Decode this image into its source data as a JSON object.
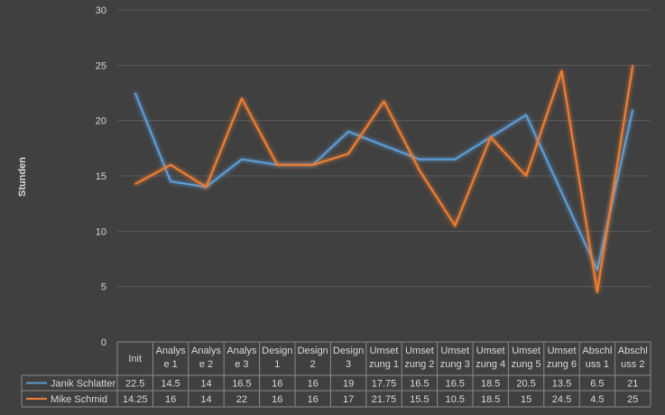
{
  "chart_data": {
    "type": "line",
    "ylabel": "Stunden",
    "ylim": [
      0,
      30
    ],
    "yticks": [
      "0",
      "5",
      "10",
      "15",
      "20",
      "25",
      "30"
    ],
    "grid": true,
    "legend": "data-table",
    "categories": [
      [
        "Init"
      ],
      [
        "Analys",
        "e 1"
      ],
      [
        "Analys",
        "e 2"
      ],
      [
        "Analys",
        "e 3"
      ],
      [
        "Design",
        "1"
      ],
      [
        "Design",
        "2"
      ],
      [
        "Design",
        "3"
      ],
      [
        "Umset",
        "zung 1"
      ],
      [
        "Umset",
        "zung 2"
      ],
      [
        "Umset",
        "zung 3"
      ],
      [
        "Umset",
        "zung 4"
      ],
      [
        "Umset",
        "zung 5"
      ],
      [
        "Umset",
        "zung 6"
      ],
      [
        "Abschl",
        "uss 1"
      ],
      [
        "Abschl",
        "uss 2"
      ]
    ],
    "series": [
      {
        "name": "Janik Schlatter",
        "color": "#5b9bd5",
        "values": [
          22.5,
          14.5,
          14,
          16.5,
          16,
          16,
          19,
          17.75,
          16.5,
          16.5,
          18.5,
          20.5,
          13.5,
          6.5,
          21
        ],
        "labels": [
          "22.5",
          "14.5",
          "14",
          "16.5",
          "16",
          "16",
          "19",
          "17.75",
          "16.5",
          "16.5",
          "18.5",
          "20.5",
          "13.5",
          "6.5",
          "21"
        ]
      },
      {
        "name": "Mike Schmid",
        "color": "#ed7d31",
        "values": [
          14.25,
          16,
          14,
          22,
          16,
          16,
          17,
          21.75,
          15.5,
          10.5,
          18.5,
          15,
          24.5,
          4.5,
          25
        ],
        "labels": [
          "14.25",
          "16",
          "14",
          "22",
          "16",
          "16",
          "17",
          "21.75",
          "15.5",
          "10.5",
          "18.5",
          "15",
          "24.5",
          "4.5",
          "25"
        ]
      }
    ]
  }
}
